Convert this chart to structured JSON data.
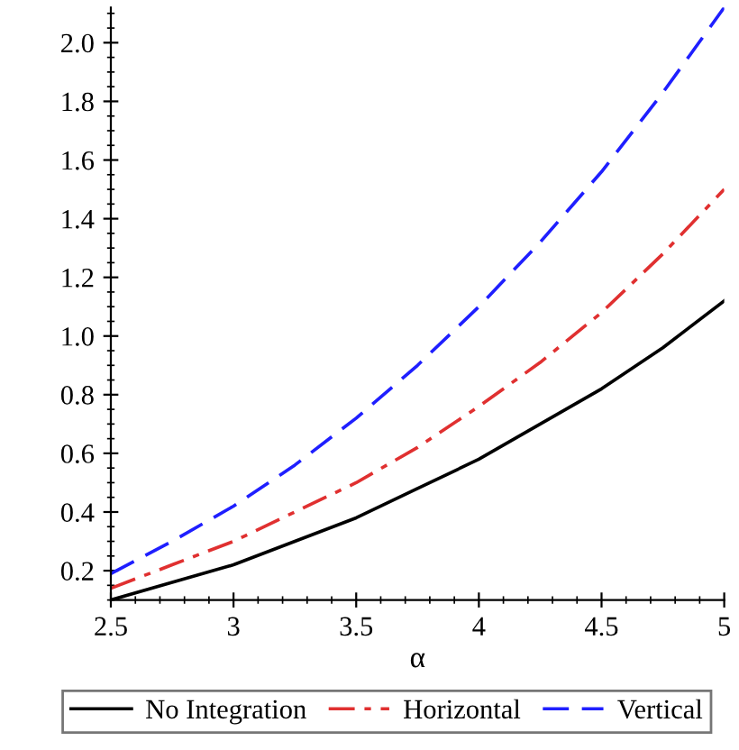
{
  "chart_data": {
    "type": "line",
    "xlabel": "α",
    "xlim": [
      2.5,
      5
    ],
    "ylim": [
      0.1,
      2.12
    ],
    "xticks": [
      2.5,
      3,
      3.5,
      4,
      4.5,
      5
    ],
    "yticks": [
      0.2,
      0.4,
      0.6,
      0.8,
      {
        "value": 1,
        "label": "1.0"
      },
      1.2,
      1.4,
      1.6,
      1.8,
      {
        "value": 2,
        "label": "2.0"
      }
    ],
    "x": [
      2.5,
      2.75,
      3,
      3.25,
      3.5,
      3.75,
      4,
      4.25,
      4.5,
      4.75,
      5
    ],
    "series": [
      {
        "name": "No Integration",
        "color": "#000000",
        "line_style": "solid",
        "values": [
          0.1,
          0.16,
          0.22,
          0.3,
          0.38,
          0.48,
          0.58,
          0.7,
          0.82,
          0.96,
          1.12
        ]
      },
      {
        "name": "Horizontal",
        "color": "#e03030",
        "line_style": "dashdot",
        "values": [
          0.14,
          0.22,
          0.3,
          0.4,
          0.5,
          0.62,
          0.76,
          0.91,
          1.08,
          1.28,
          1.5
        ]
      },
      {
        "name": "Vertical",
        "color": "#1f1fff",
        "line_style": "dashed",
        "values": [
          0.19,
          0.3,
          0.42,
          0.56,
          0.72,
          0.9,
          1.1,
          1.32,
          1.56,
          1.83,
          2.12
        ]
      }
    ],
    "legend": "bottom",
    "grid": false
  }
}
